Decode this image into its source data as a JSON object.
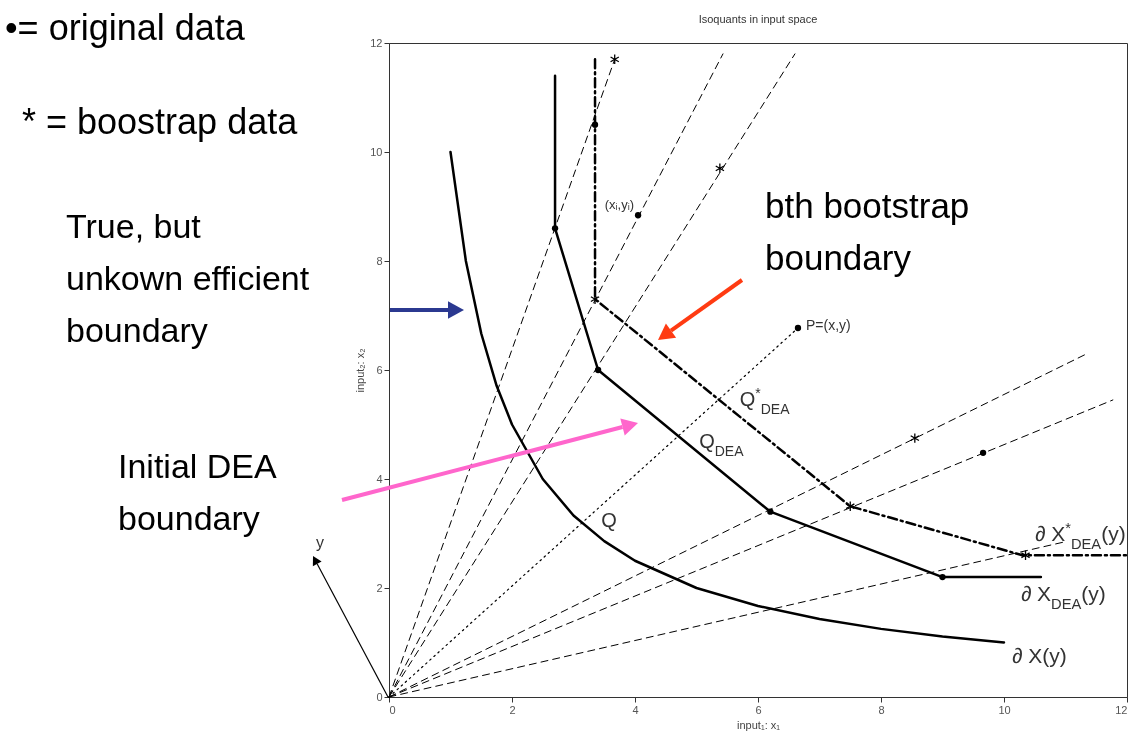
{
  "chart_data": {
    "type": "line",
    "title": "Isoquants in input space",
    "xlabel": "input₁: x₁",
    "ylabel": "input₂: x₂",
    "xlim": [
      0,
      12
    ],
    "ylim": [
      0,
      12
    ],
    "xticks": [
      0,
      2,
      4,
      6,
      8,
      10,
      12
    ],
    "yticks": [
      0,
      2,
      4,
      6,
      8,
      10,
      12
    ],
    "grid": false,
    "series": [
      {
        "name": "∂ X(y)",
        "type": "line",
        "color": "#000000",
        "line_style": "solid",
        "x": [
          1,
          1.25,
          1.5,
          1.75,
          2,
          2.5,
          3,
          3.5,
          4,
          5,
          6,
          7,
          8,
          9,
          10
        ],
        "values": [
          10,
          8,
          6.67,
          5.71,
          5,
          4,
          3.33,
          2.86,
          2.5,
          2,
          1.67,
          1.43,
          1.25,
          1.11,
          1
        ]
      },
      {
        "name": "∂ X$_{DEA}$(y)",
        "type": "line",
        "color": "#000000",
        "line_style": "solid",
        "x": [
          2.7,
          2.7,
          3.4,
          6.2,
          9,
          10.6
        ],
        "values": [
          11.4,
          8.6,
          6,
          3.4,
          2.2,
          2.2
        ]
      },
      {
        "name": "∂ X$^{*}$$_{DEA}$(y)",
        "type": "line",
        "color": "#000000",
        "line_style": "dashdot",
        "x": [
          3.35,
          3.35,
          7.5,
          10.3,
          12
        ],
        "values": [
          11.7,
          7.3,
          3.5,
          2.6,
          2.6
        ]
      },
      {
        "type": "line",
        "color": "#000000",
        "line_style": "dashed",
        "x": [
          0,
          3.67
        ],
        "values": [
          0,
          11.7
        ]
      },
      {
        "type": "line",
        "color": "#000000",
        "line_style": "dashed",
        "x": [
          0,
          5.43
        ],
        "values": [
          0,
          11.8
        ]
      },
      {
        "type": "line",
        "color": "#000000",
        "line_style": "dashed",
        "x": [
          0,
          6.6
        ],
        "values": [
          0,
          11.8
        ]
      },
      {
        "type": "line",
        "color": "#000000",
        "line_style": "dashed",
        "x": [
          0,
          11.35
        ],
        "values": [
          0,
          6.3
        ]
      },
      {
        "type": "line",
        "color": "#000000",
        "line_style": "dashed",
        "x": [
          0,
          11.77
        ],
        "values": [
          0,
          5.45
        ]
      },
      {
        "type": "line",
        "color": "#000000",
        "line_style": "dashed",
        "x": [
          0,
          11
        ],
        "values": [
          0,
          2.85
        ]
      },
      {
        "type": "line",
        "color": "#000000",
        "line_style": "dotted",
        "x": [
          0,
          6.65
        ],
        "values": [
          0,
          6.77
        ]
      },
      {
        "type": "scatter",
        "color": "#000000",
        "marker": "circle",
        "x": [
          2.7,
          3.4,
          6.2,
          9,
          4.05,
          6.65,
          9.66,
          3.35
        ],
        "values": [
          8.6,
          6,
          3.4,
          2.2,
          8.84,
          6.77,
          4.48,
          10.5
        ]
      },
      {
        "type": "scatter",
        "color": "#000000",
        "marker": "cross",
        "x": [
          3.67,
          5.38,
          3.35,
          8.55,
          7.5,
          10.35
        ],
        "values": [
          11.7,
          9.7,
          7.3,
          4.75,
          3.5,
          2.6
        ]
      }
    ],
    "annotations": [
      {
        "text": "(xᵢ,yᵢ)",
        "x": 4.05,
        "y": 8.84
      },
      {
        "text": "P=(x,y)",
        "x": 6.65,
        "y": 6.77
      },
      {
        "text": "Q",
        "x": 3.16,
        "y": 3.16
      },
      {
        "text": "Q$_{DEA}$",
        "x": 4.75,
        "y": 4.75
      },
      {
        "text": "Q$^{*}$$_{DEA}$",
        "x": 5.41,
        "y": 5.41
      },
      "•= original data",
      "* = boostrap data",
      "True, but\nunkown efficient\nboundary",
      "Initial DEA\nboundary",
      "bth bootstrap\nboundary",
      "y"
    ]
  }
}
